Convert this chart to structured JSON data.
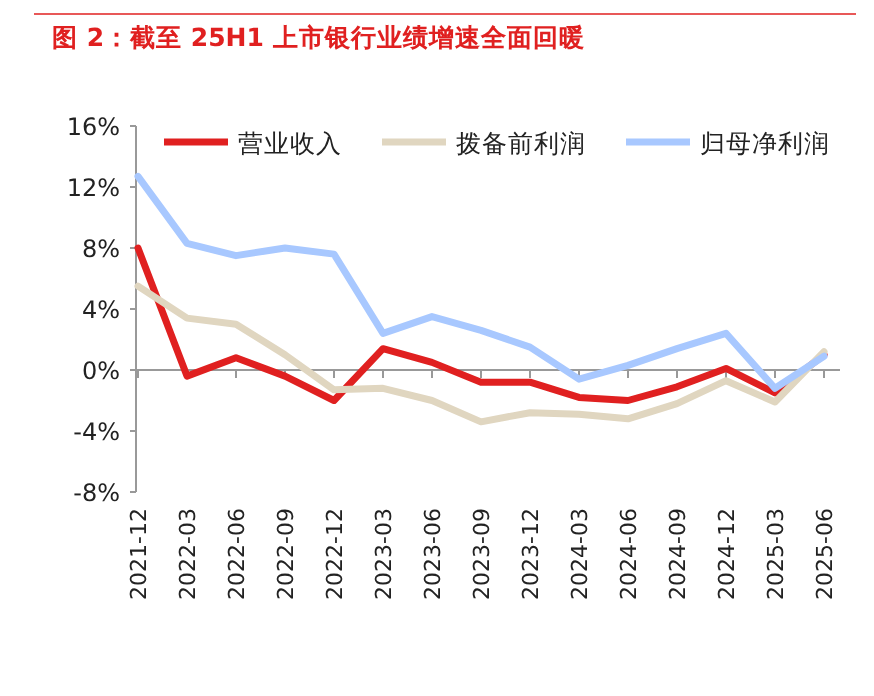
{
  "chart_data": {
    "type": "line",
    "title": "图 2：截至 25H1 上市银行业绩增速全面回暖",
    "categories": [
      "2021-12",
      "2022-03",
      "2022-06",
      "2022-09",
      "2022-12",
      "2023-03",
      "2023-06",
      "2023-09",
      "2023-12",
      "2024-03",
      "2024-06",
      "2024-09",
      "2024-12",
      "2025-03",
      "2025-06"
    ],
    "series": [
      {
        "name": "营业收入",
        "color": "#e02020",
        "values": [
          8.0,
          -0.4,
          0.8,
          -0.4,
          -2.0,
          1.4,
          0.5,
          -0.8,
          -0.8,
          -1.8,
          -2.0,
          -1.1,
          0.1,
          -1.5,
          1.0
        ]
      },
      {
        "name": "拨备前利润",
        "color": "#e0d6c0",
        "values": [
          5.5,
          3.4,
          3.0,
          1.0,
          -1.3,
          -1.2,
          -2.0,
          -3.4,
          -2.8,
          -2.9,
          -3.2,
          -2.2,
          -0.7,
          -2.1,
          1.2
        ]
      },
      {
        "name": "归母净利润",
        "color": "#a8c8ff",
        "values": [
          12.7,
          8.3,
          7.5,
          8.0,
          7.6,
          2.4,
          3.5,
          2.6,
          1.5,
          -0.6,
          0.3,
          1.4,
          2.4,
          -1.2,
          0.9
        ]
      }
    ],
    "ylim": [
      -8,
      16
    ],
    "yticks": [
      {
        "value": -8,
        "label": "-8%"
      },
      {
        "value": -4,
        "label": "-4%"
      },
      {
        "value": 0,
        "label": "0%"
      },
      {
        "value": 4,
        "label": "4%"
      },
      {
        "value": 8,
        "label": "8%"
      },
      {
        "value": 12,
        "label": "12%"
      },
      {
        "value": 16,
        "label": "16%"
      }
    ],
    "legend": "top",
    "marker": "none",
    "line_style": "solid"
  }
}
